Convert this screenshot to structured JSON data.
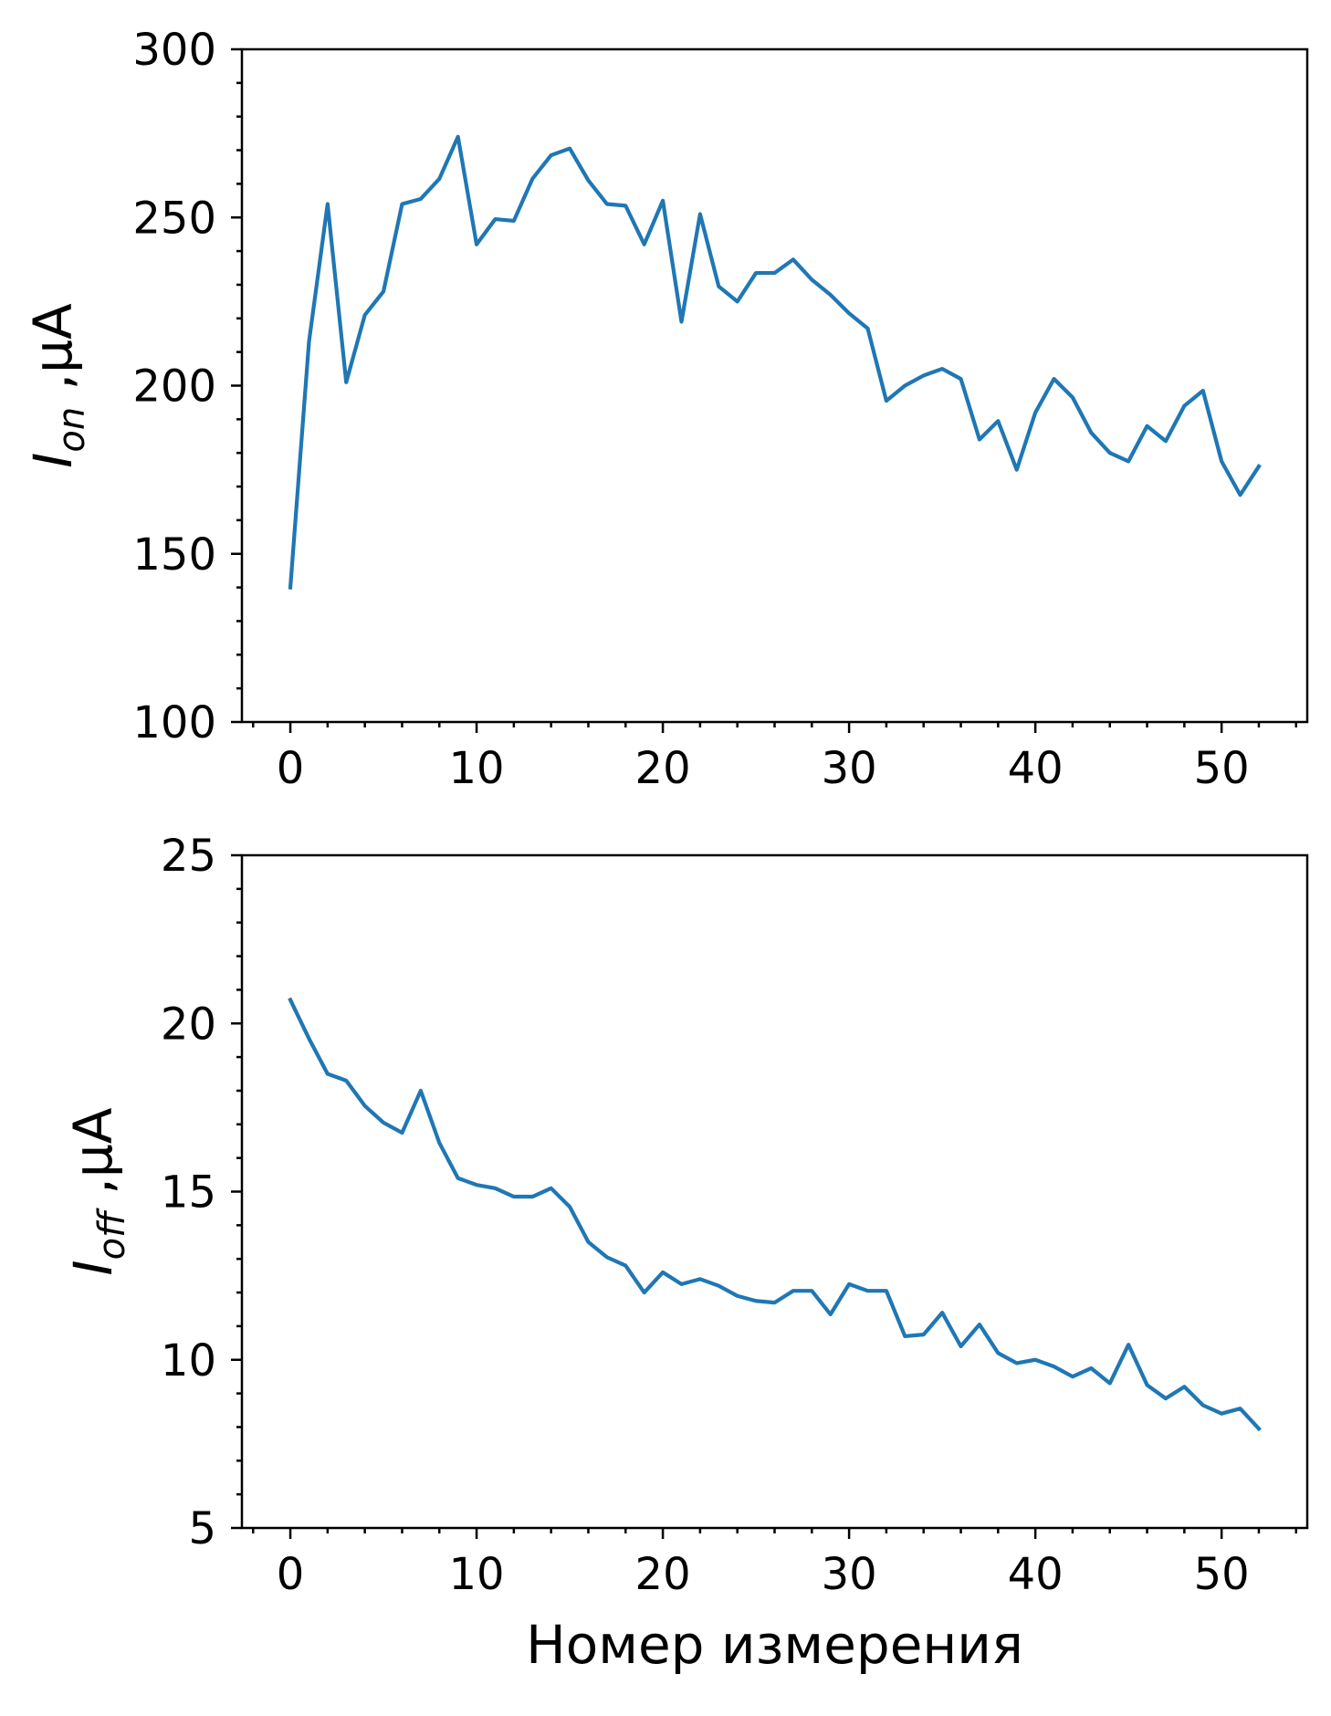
{
  "chart_data": [
    {
      "type": "line",
      "title": "",
      "xlabel": "",
      "ylabel": "I_on ,μA",
      "ylabel_main": "I",
      "ylabel_sub": "on",
      "ylabel_unit": " ,μA",
      "xlim": [
        -2.6,
        54.6
      ],
      "ylim": [
        100,
        300
      ],
      "xticks": [
        0,
        10,
        20,
        30,
        40,
        50
      ],
      "yticks": [
        100,
        150,
        200,
        250,
        300
      ],
      "xtick_labels": [
        "0",
        "10",
        "20",
        "30",
        "40",
        "50"
      ],
      "ytick_labels": [
        "100",
        "150",
        "200",
        "250",
        "300"
      ],
      "grid": false,
      "color": "#1f77b4",
      "series": [
        {
          "values": [
            140,
            213,
            254,
            201,
            221,
            228,
            254,
            255.5,
            261.5,
            274,
            242,
            249.5,
            249,
            261.5,
            268.5,
            270.5,
            261,
            254,
            253.5,
            242,
            255,
            219,
            251,
            229.5,
            225,
            233.5,
            233.5,
            237.5,
            231.5,
            227,
            221.5,
            217,
            195.5,
            200,
            203,
            205,
            202,
            184,
            189.5,
            175,
            192,
            202,
            196.5,
            186,
            180,
            177.5,
            188,
            183.5,
            194,
            198.5,
            177.5,
            167.5,
            176
          ]
        }
      ]
    },
    {
      "type": "line",
      "title": "",
      "xlabel": "Номер измерения",
      "ylabel": "I_off ,μA",
      "ylabel_main": "I",
      "ylabel_sub": "off",
      "ylabel_unit": " ,μA",
      "xlim": [
        -2.6,
        54.6
      ],
      "ylim": [
        5,
        25
      ],
      "xticks": [
        0,
        10,
        20,
        30,
        40,
        50
      ],
      "yticks": [
        5,
        10,
        15,
        20,
        25
      ],
      "xtick_labels": [
        "0",
        "10",
        "20",
        "30",
        "40",
        "50"
      ],
      "ytick_labels": [
        "5",
        "10",
        "15",
        "20",
        "25"
      ],
      "grid": false,
      "color": "#1f77b4",
      "series": [
        {
          "values": [
            20.7,
            19.55,
            18.5,
            18.3,
            17.55,
            17.05,
            16.75,
            18.0,
            16.45,
            15.4,
            15.2,
            15.1,
            14.85,
            14.85,
            15.1,
            14.55,
            13.5,
            13.05,
            12.8,
            12.0,
            12.6,
            12.25,
            12.4,
            12.2,
            11.9,
            11.75,
            11.7,
            12.05,
            12.05,
            11.35,
            12.25,
            12.05,
            12.05,
            10.7,
            10.75,
            11.4,
            10.4,
            11.05,
            10.2,
            9.9,
            10.0,
            9.8,
            9.5,
            9.75,
            9.3,
            10.45,
            9.25,
            8.85,
            9.2,
            8.65,
            8.4,
            8.55,
            7.95
          ]
        }
      ]
    }
  ]
}
